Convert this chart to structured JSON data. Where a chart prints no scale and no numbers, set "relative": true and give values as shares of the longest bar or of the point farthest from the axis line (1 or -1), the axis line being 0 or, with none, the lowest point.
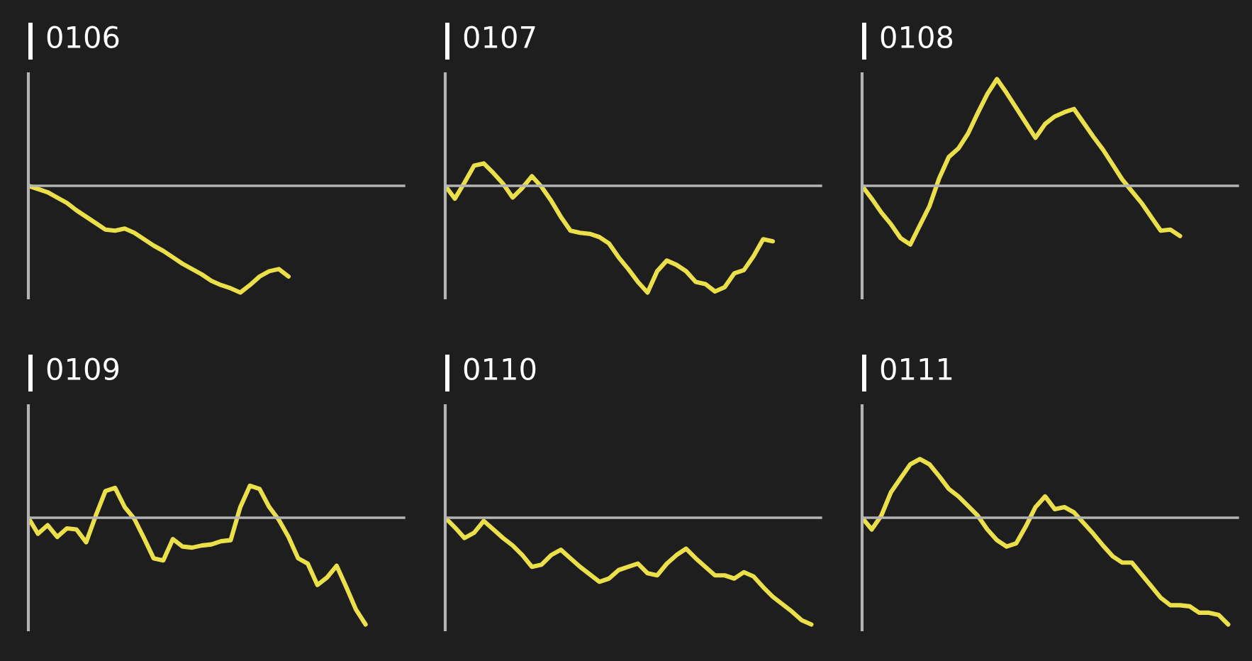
{
  "chart_data": [
    {
      "type": "line",
      "title": "0106",
      "relative": true,
      "color": "#ece04a",
      "categories": [
        null,
        null,
        null,
        null,
        null,
        null,
        null,
        null,
        null,
        null,
        null,
        null,
        null,
        null,
        null,
        null,
        null,
        null,
        null,
        null,
        null,
        null,
        null,
        null,
        null,
        null,
        null,
        null,
        null,
        null,
        null,
        null,
        null,
        null,
        null,
        null,
        null,
        null,
        null,
        null
      ],
      "values": [
        0,
        -0.03,
        -0.06,
        -0.11,
        -0.16,
        -0.23,
        -0.29,
        -0.35,
        -0.41,
        -0.42,
        -0.4,
        -0.44,
        -0.5,
        -0.56,
        -0.61,
        -0.67,
        -0.73,
        -0.78,
        -0.83,
        -0.89,
        -0.93,
        -0.96,
        -1,
        -0.93,
        -0.85,
        -0.8,
        -0.78,
        -0.85,
        null,
        null,
        null,
        null,
        null,
        null,
        null,
        null,
        null,
        null,
        null,
        null
      ]
    },
    {
      "type": "line",
      "title": "0107",
      "relative": true,
      "color": "#ece04a",
      "categories": [
        null,
        null,
        null,
        null,
        null,
        null,
        null,
        null,
        null,
        null,
        null,
        null,
        null,
        null,
        null,
        null,
        null,
        null,
        null,
        null,
        null,
        null,
        null,
        null,
        null,
        null,
        null,
        null,
        null,
        null,
        null,
        null,
        null,
        null,
        null,
        null,
        null,
        null,
        null,
        null
      ],
      "values": [
        0,
        -0.12,
        0.03,
        0.19,
        0.21,
        0.12,
        0.02,
        -0.11,
        -0.02,
        0.09,
        -0.01,
        -0.14,
        -0.29,
        -0.42,
        -0.44,
        -0.45,
        -0.48,
        -0.54,
        -0.67,
        -0.78,
        -0.9,
        -1,
        -0.8,
        -0.7,
        -0.74,
        -0.8,
        -0.9,
        -0.92,
        -0.99,
        -0.95,
        -0.82,
        -0.79,
        -0.66,
        -0.5,
        -0.52,
        null,
        null,
        null,
        null,
        null
      ]
    },
    {
      "type": "line",
      "title": "0108",
      "relative": true,
      "color": "#ece04a",
      "categories": [
        null,
        null,
        null,
        null,
        null,
        null,
        null,
        null,
        null,
        null,
        null,
        null,
        null,
        null,
        null,
        null,
        null,
        null,
        null,
        null,
        null,
        null,
        null,
        null,
        null,
        null,
        null,
        null,
        null,
        null,
        null,
        null,
        null,
        null,
        null,
        null,
        null,
        null,
        null,
        null
      ],
      "values": [
        0,
        -0.12,
        -0.25,
        -0.36,
        -0.49,
        -0.55,
        -0.37,
        -0.19,
        0.07,
        0.27,
        0.35,
        0.49,
        0.68,
        0.86,
        1,
        0.87,
        0.73,
        0.59,
        0.45,
        0.58,
        0.65,
        0.69,
        0.72,
        0.59,
        0.46,
        0.34,
        0.2,
        0.06,
        -0.05,
        -0.16,
        -0.29,
        -0.42,
        -0.41,
        -0.47,
        null,
        null,
        null,
        null,
        null,
        null
      ]
    },
    {
      "type": "line",
      "title": "0109",
      "relative": true,
      "color": "#ece04a",
      "categories": [
        null,
        null,
        null,
        null,
        null,
        null,
        null,
        null,
        null,
        null,
        null,
        null,
        null,
        null,
        null,
        null,
        null,
        null,
        null,
        null,
        null,
        null,
        null,
        null,
        null,
        null,
        null,
        null,
        null,
        null,
        null,
        null,
        null,
        null,
        null,
        null,
        null,
        null,
        null,
        null
      ],
      "values": [
        0,
        -0.15,
        -0.07,
        -0.18,
        -0.1,
        -0.11,
        -0.23,
        0.02,
        0.25,
        0.28,
        0.1,
        -0.01,
        -0.19,
        -0.38,
        -0.4,
        -0.2,
        -0.27,
        -0.28,
        -0.26,
        -0.25,
        -0.22,
        -0.21,
        0.1,
        0.3,
        0.27,
        0.1,
        -0.02,
        -0.18,
        -0.38,
        -0.43,
        -0.63,
        -0.56,
        -0.45,
        -0.65,
        -0.86,
        -1,
        null,
        null,
        null,
        null
      ]
    },
    {
      "type": "line",
      "title": "0110",
      "relative": true,
      "color": "#ece04a",
      "categories": [
        null,
        null,
        null,
        null,
        null,
        null,
        null,
        null,
        null,
        null,
        null,
        null,
        null,
        null,
        null,
        null,
        null,
        null,
        null,
        null,
        null,
        null,
        null,
        null,
        null,
        null,
        null,
        null,
        null,
        null,
        null,
        null,
        null,
        null,
        null,
        null,
        null,
        null,
        null,
        null
      ],
      "values": [
        0,
        -0.09,
        -0.19,
        -0.14,
        -0.03,
        -0.11,
        -0.19,
        -0.26,
        -0.35,
        -0.46,
        -0.44,
        -0.35,
        -0.3,
        -0.38,
        -0.46,
        -0.53,
        -0.6,
        -0.57,
        -0.49,
        -0.46,
        -0.43,
        -0.52,
        -0.54,
        -0.43,
        -0.35,
        -0.29,
        -0.38,
        -0.46,
        -0.54,
        -0.54,
        -0.57,
        -0.51,
        -0.55,
        -0.65,
        -0.74,
        -0.81,
        -0.88,
        -0.96,
        -1,
        null
      ]
    },
    {
      "type": "line",
      "title": "0111",
      "relative": true,
      "color": "#ece04a",
      "categories": [
        null,
        null,
        null,
        null,
        null,
        null,
        null,
        null,
        null,
        null,
        null,
        null,
        null,
        null,
        null,
        null,
        null,
        null,
        null,
        null,
        null,
        null,
        null,
        null,
        null,
        null,
        null,
        null,
        null,
        null,
        null,
        null,
        null,
        null,
        null,
        null,
        null,
        null,
        null,
        null
      ],
      "values": [
        0,
        -0.11,
        0.02,
        0.24,
        0.37,
        0.5,
        0.55,
        0.5,
        0.39,
        0.27,
        0.2,
        0.11,
        0.02,
        -0.11,
        -0.21,
        -0.27,
        -0.24,
        -0.08,
        0.1,
        0.2,
        0.08,
        0.1,
        0.05,
        -0.05,
        -0.15,
        -0.26,
        -0.36,
        -0.42,
        -0.42,
        -0.53,
        -0.64,
        -0.75,
        -0.82,
        -0.82,
        -0.83,
        -0.89,
        -0.89,
        -0.91,
        -1,
        null
      ]
    }
  ]
}
